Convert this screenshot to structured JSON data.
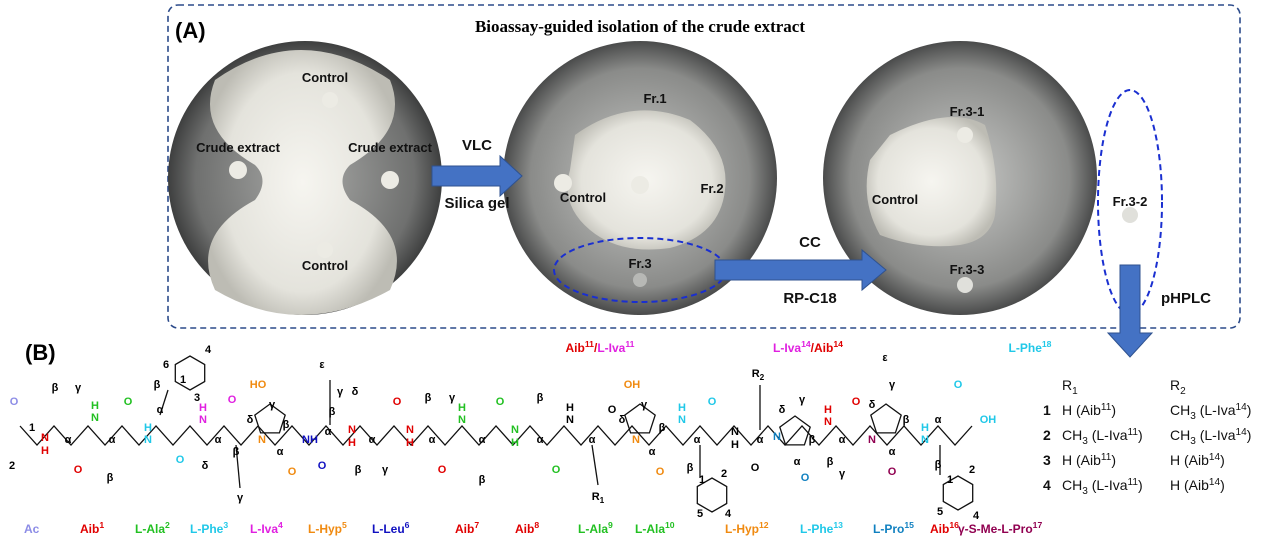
{
  "panel_a": {
    "label": "(A)",
    "title": "Bioassay-guided isolation of the crude extract",
    "plates": [
      {
        "labels": [
          "Control",
          "Crude extract",
          "Crude extract",
          "Control"
        ]
      },
      {
        "labels": [
          "Fr.1",
          "Control",
          "Fr.2",
          "Fr.3"
        ]
      },
      {
        "labels": [
          "Fr.3-1",
          "Control",
          "Fr.3-2",
          "Fr.3-3"
        ]
      }
    ],
    "arrows": [
      {
        "top": "VLC",
        "bottom": "Silica gel"
      },
      {
        "top": "CC",
        "bottom": "RP-C18"
      },
      {
        "top": "pHPLC"
      }
    ]
  },
  "panel_b": {
    "label": "(B)",
    "top_labels": [
      [
        {
          "t": "Aib",
          "c": "#e00000"
        },
        {
          "sup": "11",
          "c": "#e00000"
        },
        {
          "t": "/",
          "c": "#e00000"
        },
        {
          "t": "L-Iva",
          "c": "#e020e0"
        },
        {
          "sup": "11",
          "c": "#e020e0"
        }
      ],
      [
        {
          "t": "L-Iva",
          "c": "#e020e0"
        },
        {
          "sup": "14",
          "c": "#e020e0"
        },
        {
          "t": "/",
          "c": "#e00000"
        },
        {
          "t": "Aib",
          "c": "#e00000"
        },
        {
          "sup": "14",
          "c": "#e00000"
        }
      ],
      [
        {
          "t": "L-Phe",
          "c": "#20c8e8"
        },
        {
          "sup": "18",
          "c": "#20c8e8"
        }
      ]
    ],
    "residues": [
      {
        "name": "Ac",
        "color": "#8c8ce6"
      },
      {
        "name": "Aib",
        "sup": "1",
        "color": "#e00000"
      },
      {
        "name": "L-Ala",
        "sup": "2",
        "color": "#22c022"
      },
      {
        "name": "L-Phe",
        "sup": "3",
        "color": "#20c8e8"
      },
      {
        "name": "L-Iva",
        "sup": "4",
        "color": "#e020e0"
      },
      {
        "name": "L-Hyp",
        "sup": "5",
        "color": "#f08a10"
      },
      {
        "name": "L-Leu",
        "sup": "6",
        "color": "#1010c0"
      },
      {
        "name": "Aib",
        "sup": "7",
        "color": "#e00000"
      },
      {
        "name": "Aib",
        "sup": "8",
        "color": "#e00000"
      },
      {
        "name": "L-Ala",
        "sup": "9",
        "color": "#22c022"
      },
      {
        "name": "L-Ala",
        "sup": "10",
        "color": "#22c022"
      },
      {
        "name": "L-Hyp",
        "sup": "12",
        "color": "#f08a10"
      },
      {
        "name": "L-Phe",
        "sup": "13",
        "color": "#20c8e8"
      },
      {
        "name": "L-Pro",
        "sup": "15",
        "color": "#1080c0"
      },
      {
        "name": "Aib",
        "sup": "16",
        "color": "#e00000"
      },
      {
        "name": "γ-S-Me-L-Pro",
        "sup": "17",
        "color": "#900050"
      }
    ],
    "atoms": [
      {
        "t": "O",
        "c": "#8c8ce6"
      },
      {
        "t": "1",
        "c": "#000"
      },
      {
        "t": "2",
        "c": "#000"
      },
      {
        "t": "N",
        "c": "#e00000"
      },
      {
        "t": "H",
        "c": "#e00000"
      },
      {
        "t": "β",
        "c": "#000"
      },
      {
        "t": "γ",
        "c": "#000"
      },
      {
        "t": "α",
        "c": "#000"
      },
      {
        "t": "O",
        "c": "#e00000"
      },
      {
        "t": "H",
        "c": "#22c022"
      },
      {
        "t": "N",
        "c": "#22c022"
      },
      {
        "t": "α",
        "c": "#000"
      },
      {
        "t": "β",
        "c": "#000"
      },
      {
        "t": "O",
        "c": "#22c022"
      },
      {
        "t": "H",
        "c": "#20c8e8"
      },
      {
        "t": "N",
        "c": "#20c8e8"
      },
      {
        "t": "α",
        "c": "#000"
      },
      {
        "t": "β",
        "c": "#000"
      },
      {
        "t": "6",
        "c": "#000"
      },
      {
        "t": "1",
        "c": "#000"
      },
      {
        "t": "3",
        "c": "#000"
      },
      {
        "t": "4",
        "c": "#000"
      },
      {
        "t": "O",
        "c": "#20c8e8"
      },
      {
        "t": "H",
        "c": "#e020e0"
      },
      {
        "t": "N",
        "c": "#e020e0"
      },
      {
        "t": "α",
        "c": "#000"
      },
      {
        "t": "δ",
        "c": "#000"
      },
      {
        "t": "β",
        "c": "#000"
      },
      {
        "t": "γ",
        "c": "#000"
      },
      {
        "t": "O",
        "c": "#e020e0"
      },
      {
        "t": "HO",
        "c": "#f08a10"
      },
      {
        "t": "γ",
        "c": "#000"
      },
      {
        "t": "δ",
        "c": "#000"
      },
      {
        "t": "N",
        "c": "#f08a10"
      },
      {
        "t": "β",
        "c": "#000"
      },
      {
        "t": "α",
        "c": "#000"
      },
      {
        "t": "O",
        "c": "#f08a10"
      },
      {
        "t": "NH",
        "c": "#1010c0"
      },
      {
        "t": "ε",
        "c": "#000"
      },
      {
        "t": "γ",
        "c": "#000"
      },
      {
        "t": "δ",
        "c": "#000"
      },
      {
        "t": "β",
        "c": "#000"
      },
      {
        "t": "α",
        "c": "#000"
      },
      {
        "t": "O",
        "c": "#1010c0"
      },
      {
        "t": "N",
        "c": "#e00000"
      },
      {
        "t": "H",
        "c": "#e00000"
      },
      {
        "t": "α",
        "c": "#000"
      },
      {
        "t": "β",
        "c": "#000"
      },
      {
        "t": "γ",
        "c": "#000"
      },
      {
        "t": "O",
        "c": "#e00000"
      },
      {
        "t": "N",
        "c": "#e00000"
      },
      {
        "t": "H",
        "c": "#e00000"
      },
      {
        "t": "β",
        "c": "#000"
      },
      {
        "t": "γ",
        "c": "#000"
      },
      {
        "t": "α",
        "c": "#000"
      },
      {
        "t": "O",
        "c": "#e00000"
      },
      {
        "t": "H",
        "c": "#22c022"
      },
      {
        "t": "N",
        "c": "#22c022"
      },
      {
        "t": "α",
        "c": "#000"
      },
      {
        "t": "β",
        "c": "#000"
      },
      {
        "t": "O",
        "c": "#22c022"
      },
      {
        "t": "N",
        "c": "#22c022"
      },
      {
        "t": "H",
        "c": "#22c022"
      },
      {
        "t": "β",
        "c": "#000"
      },
      {
        "t": "α",
        "c": "#000"
      },
      {
        "t": "O",
        "c": "#22c022"
      },
      {
        "t": "H",
        "c": "#000"
      },
      {
        "t": "N",
        "c": "#000"
      },
      {
        "t": "α",
        "c": "#000"
      },
      {
        "t": "R",
        "sub": "1",
        "c": "#000"
      },
      {
        "t": "O",
        "c": "#000"
      },
      {
        "t": "OH",
        "c": "#f08a10"
      },
      {
        "t": "γ",
        "c": "#000"
      },
      {
        "t": "δ",
        "c": "#000"
      },
      {
        "t": "N",
        "c": "#f08a10"
      },
      {
        "t": "β",
        "c": "#000"
      },
      {
        "t": "α",
        "c": "#000"
      },
      {
        "t": "O",
        "c": "#f08a10"
      },
      {
        "t": "H",
        "c": "#20c8e8"
      },
      {
        "t": "N",
        "c": "#20c8e8"
      },
      {
        "t": "α",
        "c": "#000"
      },
      {
        "t": "β",
        "c": "#000"
      },
      {
        "t": "1",
        "c": "#000"
      },
      {
        "t": "2",
        "c": "#000"
      },
      {
        "t": "5",
        "c": "#000"
      },
      {
        "t": "4",
        "c": "#000"
      },
      {
        "t": "O",
        "c": "#20c8e8"
      },
      {
        "t": "H",
        "c": "#000"
      },
      {
        "t": "N",
        "c": "#000"
      },
      {
        "t": "R",
        "sub": "2",
        "c": "#000"
      },
      {
        "t": "α",
        "c": "#000"
      },
      {
        "t": "O",
        "c": "#000"
      },
      {
        "t": "δ",
        "c": "#000"
      },
      {
        "t": "γ",
        "c": "#000"
      },
      {
        "t": "N",
        "c": "#1080c0"
      },
      {
        "t": "β",
        "c": "#000"
      },
      {
        "t": "α",
        "c": "#000"
      },
      {
        "t": "O",
        "c": "#1080c0"
      },
      {
        "t": "H",
        "c": "#e00000"
      },
      {
        "t": "N",
        "c": "#e00000"
      },
      {
        "t": "α",
        "c": "#000"
      },
      {
        "t": "β",
        "c": "#000"
      },
      {
        "t": "γ",
        "c": "#000"
      },
      {
        "t": "O",
        "c": "#e00000"
      },
      {
        "t": "ε",
        "c": "#000"
      },
      {
        "t": "γ",
        "c": "#000"
      },
      {
        "t": "δ",
        "c": "#000"
      },
      {
        "t": "N",
        "c": "#900050"
      },
      {
        "t": "β",
        "c": "#000"
      },
      {
        "t": "α",
        "c": "#000"
      },
      {
        "t": "O",
        "c": "#900050"
      },
      {
        "t": "H",
        "c": "#20c8e8"
      },
      {
        "t": "N",
        "c": "#20c8e8"
      },
      {
        "t": "α",
        "c": "#000"
      },
      {
        "t": "β",
        "c": "#000"
      },
      {
        "t": "1",
        "c": "#000"
      },
      {
        "t": "2",
        "c": "#000"
      },
      {
        "t": "5",
        "c": "#000"
      },
      {
        "t": "4",
        "c": "#000"
      },
      {
        "t": "O",
        "c": "#20c8e8"
      },
      {
        "t": "OH",
        "c": "#20c8e8"
      }
    ],
    "table": {
      "headers": [
        [
          {
            "t": "R"
          },
          {
            "sub": "1"
          }
        ],
        [
          {
            "t": "R"
          },
          {
            "sub": "2"
          }
        ]
      ],
      "rows": [
        {
          "id": "1",
          "r1": [
            {
              "t": "H (Aib"
            },
            {
              "sup": "11"
            },
            {
              "t": ")"
            }
          ],
          "r2": [
            {
              "t": "CH"
            },
            {
              "sub": "3"
            },
            {
              "t": " (L-Iva"
            },
            {
              "sup": "14"
            },
            {
              "t": ")"
            }
          ]
        },
        {
          "id": "2",
          "r1": [
            {
              "t": "CH"
            },
            {
              "sub": "3"
            },
            {
              "t": " (L-Iva"
            },
            {
              "sup": "11"
            },
            {
              "t": ")"
            }
          ],
          "r2": [
            {
              "t": "CH"
            },
            {
              "sub": "3"
            },
            {
              "t": " (L-Iva"
            },
            {
              "sup": "14"
            },
            {
              "t": ")"
            }
          ]
        },
        {
          "id": "3",
          "r1": [
            {
              "t": "H (Aib"
            },
            {
              "sup": "11"
            },
            {
              "t": ")"
            }
          ],
          "r2": [
            {
              "t": "H (Aib"
            },
            {
              "sup": "14"
            },
            {
              "t": ")"
            }
          ]
        },
        {
          "id": "4",
          "r1": [
            {
              "t": "CH"
            },
            {
              "sub": "3"
            },
            {
              "t": " (L-Iva"
            },
            {
              "sup": "11"
            },
            {
              "t": ")"
            }
          ],
          "r2": [
            {
              "t": "H (Aib"
            },
            {
              "sup": "14"
            },
            {
              "t": ")"
            }
          ]
        }
      ]
    }
  }
}
